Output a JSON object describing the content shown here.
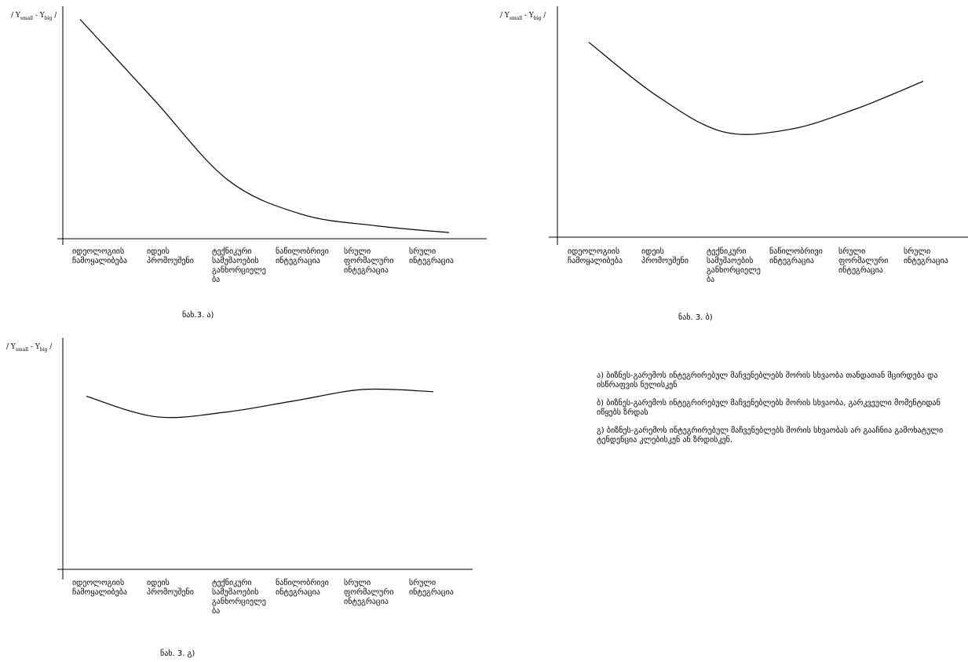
{
  "y_axis": {
    "main": "Y",
    "sub1": "small",
    "sep": " - ",
    "sub2": "big"
  },
  "categories": [
    "იდეოლოგიის\nჩამოყალიბება",
    "იდეის\nპრომოუშენი",
    "ტექნიკური\nსამუშაოების\nგანხორციელე\nბა",
    "ნაწილობრივი\nინტეგრაცია",
    "სრული\nფორმალური\nინტეგრაცია",
    "სრული\nინტეგრაცია"
  ],
  "chart_data": [
    {
      "type": "line",
      "title": "ნახ.3. ა)",
      "xlabel": "",
      "ylabel": "/ Ysmall - Ybig /",
      "categories": [
        "იდეოლოგიის ჩამოყალიბება",
        "იდეის პრომოუშენი",
        "ტექნიკური სამუშაოების განხორციელება",
        "ნაწილობრივი ინტეგრაცია",
        "სრული ფორმალური ინტეგრაცია",
        "სრული ინტეგრაცია"
      ],
      "series": [
        {
          "values": [
            0.95,
            0.6,
            0.25,
            0.1,
            0.05,
            0.02
          ]
        }
      ],
      "ylim": [
        0,
        1
      ],
      "grid": false
    },
    {
      "type": "line",
      "title": "ნახ. 3. ბ)",
      "xlabel": "",
      "ylabel": "/ Ysmall - Ybig /",
      "categories": [
        "იდეოლოგიის ჩამოყალიბება",
        "იდეის პრომოუშენი",
        "ტექნიკური სამუშაოების განხორციელება",
        "ნაწილობრივი ინტეგრაცია",
        "სრული ფორმალური ინტეგრაცია",
        "სრული ინტეგრაცია"
      ],
      "series": [
        {
          "values": [
            0.85,
            0.62,
            0.46,
            0.47,
            0.56,
            0.68
          ]
        }
      ],
      "ylim": [
        0,
        1
      ],
      "grid": false
    },
    {
      "type": "line",
      "title": "ნახ. 3. გ)",
      "xlabel": "",
      "ylabel": "/ Ysmall - Ybig /",
      "categories": [
        "იდეოლოგიის ჩამოყალიბება",
        "იდეის პრომოუშენი",
        "ტექნიკური სამუშაოების განხორციელება",
        "ნაწილობრივი ინტეგრაცია",
        "სრული ფორმალური ინტეგრაცია",
        "სრული ინტეგრაცია"
      ],
      "series": [
        {
          "values": [
            0.76,
            0.67,
            0.69,
            0.74,
            0.79,
            0.78
          ]
        }
      ],
      "ylim": [
        0,
        1
      ],
      "grid": false
    }
  ],
  "notes": [
    "ა) ბიზნეს-გარემოს ინტეგრირებულ მაჩვენებლებს შორის სხვაობა თანდათან მცირდება და ისწრაფვის ნულისკენ",
    "ბ) ბიზნეს-გარემოს ინტეგრირებულ მაჩვენებლებს შორის სხვაობა, გარკვეული მომენტიდან იწყებს ზრდას",
    "გ) ბიზნეს-გარემოს ინტეგრირებულ მაჩვენებლებს შორის სხვაობას არ გააჩნია გამოხატული ტენდენცია კლებისკენ ან ზრდისკენ."
  ],
  "line_color": "#000000"
}
